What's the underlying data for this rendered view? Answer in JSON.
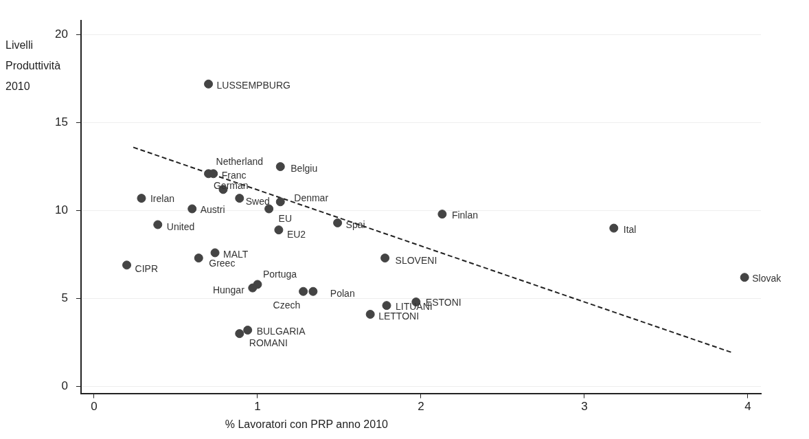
{
  "chart_data": {
    "type": "scatter",
    "ylabel": "Livelli Produttività 2010",
    "xlabel": "% Lavoratori con PRP anno 2010",
    "xlim": [
      -0.08,
      4.08
    ],
    "xticks": [
      0,
      1,
      2,
      3,
      4
    ],
    "ylim": [
      -0.4,
      20.8
    ],
    "yticks": [
      0,
      5,
      10,
      15,
      20
    ],
    "grid": "y",
    "legend": false,
    "series": [
      {
        "type": "scatter",
        "color": "#444444",
        "marker": "circle",
        "x": [
          0.7,
          0.7,
          0.73,
          1.14,
          0.79,
          0.29,
          0.89,
          1.14,
          0.6,
          1.07,
          2.13,
          1.49,
          0.39,
          1.13,
          3.18,
          0.74,
          0.64,
          1.78,
          0.2,
          3.98,
          1.0,
          0.97,
          1.28,
          1.34,
          1.79,
          1.97,
          1.69,
          0.94,
          0.89
        ],
        "values": [
          17.2,
          12.1,
          12.1,
          12.5,
          11.2,
          10.7,
          10.7,
          10.5,
          10.1,
          10.1,
          9.8,
          9.3,
          9.2,
          8.9,
          9.0,
          7.6,
          7.3,
          7.3,
          6.9,
          6.2,
          5.8,
          5.6,
          5.4,
          5.4,
          4.6,
          4.8,
          4.1,
          3.2,
          3.0
        ]
      },
      {
        "type": "line",
        "color": "#222222",
        "marker": "none",
        "line_style": "dashed",
        "x": [
          0.24,
          3.91
        ],
        "values": [
          13.6,
          1.9
        ]
      }
    ],
    "annotations": [
      {
        "text": "LUSSEMPBURG",
        "x": 0.7,
        "y": 17.2
      },
      {
        "text": "Netherland",
        "x": 0.7,
        "y": 12.1
      },
      {
        "text": "Franc",
        "x": 0.73,
        "y": 12.1
      },
      {
        "text": "Belgiu",
        "x": 1.14,
        "y": 12.5
      },
      {
        "text": "German",
        "x": 0.79,
        "y": 11.2
      },
      {
        "text": "Irelan",
        "x": 0.29,
        "y": 10.7
      },
      {
        "text": "Swed",
        "x": 0.89,
        "y": 10.7
      },
      {
        "text": "Denmar",
        "x": 1.14,
        "y": 10.5
      },
      {
        "text": "Austri",
        "x": 0.6,
        "y": 10.1
      },
      {
        "text": "EU",
        "x": 1.07,
        "y": 10.1
      },
      {
        "text": "Finlan",
        "x": 2.13,
        "y": 9.8
      },
      {
        "text": "Spai",
        "x": 1.49,
        "y": 9.3
      },
      {
        "text": "United",
        "x": 0.39,
        "y": 9.2
      },
      {
        "text": "EU2",
        "x": 1.13,
        "y": 8.9
      },
      {
        "text": "Ital",
        "x": 3.18,
        "y": 9.0
      },
      {
        "text": "MALT",
        "x": 0.74,
        "y": 7.6
      },
      {
        "text": "Greec",
        "x": 0.64,
        "y": 7.3
      },
      {
        "text": "SLOVENI",
        "x": 1.78,
        "y": 7.3
      },
      {
        "text": "CIPR",
        "x": 0.2,
        "y": 6.9
      },
      {
        "text": "Slovak",
        "x": 3.98,
        "y": 6.2
      },
      {
        "text": "Portuga",
        "x": 1.0,
        "y": 5.8
      },
      {
        "text": "Hungar",
        "x": 0.97,
        "y": 5.6
      },
      {
        "text": "Czech",
        "x": 1.28,
        "y": 5.4
      },
      {
        "text": "Polan",
        "x": 1.34,
        "y": 5.4
      },
      {
        "text": "LITUANI",
        "x": 1.79,
        "y": 4.6
      },
      {
        "text": "ESTONI",
        "x": 1.97,
        "y": 4.8
      },
      {
        "text": "LETTONI",
        "x": 1.69,
        "y": 4.1
      },
      {
        "text": "BULGARIA",
        "x": 0.94,
        "y": 3.2
      },
      {
        "text": "ROMANI",
        "x": 0.89,
        "y": 3.0
      }
    ]
  }
}
